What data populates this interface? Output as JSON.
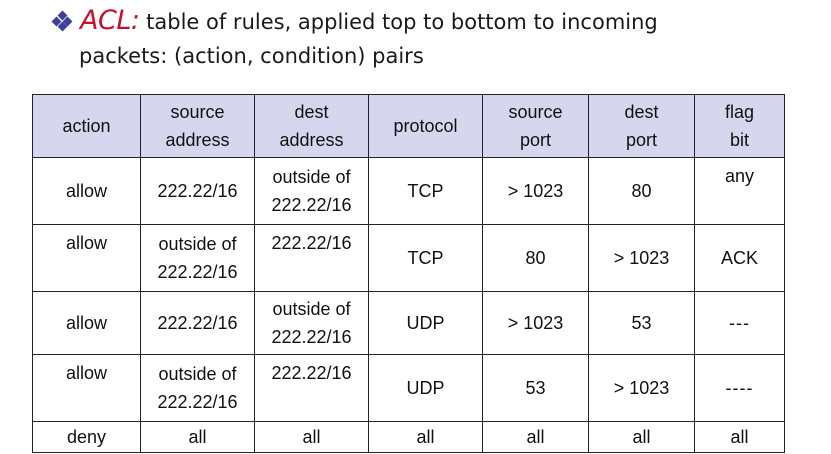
{
  "intro": {
    "term": "ACL:",
    "line1": "table of rules, applied top to bottom to incoming",
    "line2": "packets: (action, condition) pairs"
  },
  "table": {
    "headers": [
      [
        "action"
      ],
      [
        "source",
        "address"
      ],
      [
        "dest",
        "address"
      ],
      [
        "protocol"
      ],
      [
        "source",
        "port"
      ],
      [
        "dest",
        "port"
      ],
      [
        "flag",
        "bit"
      ]
    ],
    "rows": [
      {
        "action": "allow",
        "source_address": [
          "222.22/16"
        ],
        "dest_address": [
          "outside of",
          "222.22/16"
        ],
        "protocol": "TCP",
        "source_port": "> 1023",
        "dest_port": "80",
        "flag_bit": "any"
      },
      {
        "action": "allow",
        "source_address": [
          "outside of",
          "222.22/16"
        ],
        "dest_address": [
          "222.22/16"
        ],
        "protocol": "TCP",
        "source_port": "80",
        "dest_port": "> 1023",
        "flag_bit": "ACK"
      },
      {
        "action": "allow",
        "source_address": [
          "222.22/16"
        ],
        "dest_address": [
          "outside of",
          "222.22/16"
        ],
        "protocol": "UDP",
        "source_port": "> 1023",
        "dest_port": "53",
        "flag_bit": "---"
      },
      {
        "action": "allow",
        "source_address": [
          "outside of",
          "222.22/16"
        ],
        "dest_address": [
          "222.22/16"
        ],
        "protocol": "UDP",
        "source_port": "53",
        "dest_port": "> 1023",
        "flag_bit": "----"
      },
      {
        "action": "deny",
        "source_address": [
          "all"
        ],
        "dest_address": [
          "all"
        ],
        "protocol": "all",
        "source_port": "all",
        "dest_port": "all",
        "flag_bit": "all"
      }
    ]
  },
  "colors": {
    "accent_term": "#c8102e",
    "bullet": "#3f3f9c",
    "header_bg": "#d6d6ee"
  },
  "icons": {
    "bullet": "diamond-bullet-icon"
  }
}
